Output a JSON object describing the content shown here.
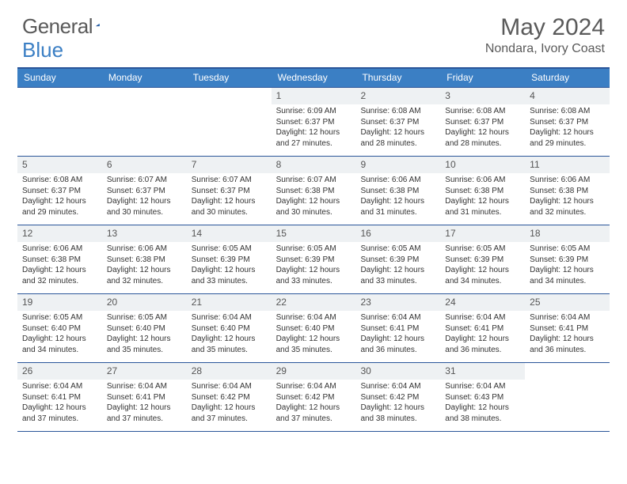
{
  "logo": {
    "part1": "General",
    "part2": "Blue"
  },
  "title": "May 2024",
  "location": "Nondara, Ivory Coast",
  "colors": {
    "header_bar": "#3b7fc4",
    "header_border": "#2a5599",
    "daynum_bg": "#eef1f3",
    "text": "#333333",
    "muted": "#5a5a5a",
    "white": "#ffffff"
  },
  "weekdays": [
    "Sunday",
    "Monday",
    "Tuesday",
    "Wednesday",
    "Thursday",
    "Friday",
    "Saturday"
  ],
  "weeks": [
    [
      null,
      null,
      null,
      {
        "n": "1",
        "sr": "6:09 AM",
        "ss": "6:37 PM",
        "dl": "12 hours and 27 minutes."
      },
      {
        "n": "2",
        "sr": "6:08 AM",
        "ss": "6:37 PM",
        "dl": "12 hours and 28 minutes."
      },
      {
        "n": "3",
        "sr": "6:08 AM",
        "ss": "6:37 PM",
        "dl": "12 hours and 28 minutes."
      },
      {
        "n": "4",
        "sr": "6:08 AM",
        "ss": "6:37 PM",
        "dl": "12 hours and 29 minutes."
      }
    ],
    [
      {
        "n": "5",
        "sr": "6:08 AM",
        "ss": "6:37 PM",
        "dl": "12 hours and 29 minutes."
      },
      {
        "n": "6",
        "sr": "6:07 AM",
        "ss": "6:37 PM",
        "dl": "12 hours and 30 minutes."
      },
      {
        "n": "7",
        "sr": "6:07 AM",
        "ss": "6:37 PM",
        "dl": "12 hours and 30 minutes."
      },
      {
        "n": "8",
        "sr": "6:07 AM",
        "ss": "6:38 PM",
        "dl": "12 hours and 30 minutes."
      },
      {
        "n": "9",
        "sr": "6:06 AM",
        "ss": "6:38 PM",
        "dl": "12 hours and 31 minutes."
      },
      {
        "n": "10",
        "sr": "6:06 AM",
        "ss": "6:38 PM",
        "dl": "12 hours and 31 minutes."
      },
      {
        "n": "11",
        "sr": "6:06 AM",
        "ss": "6:38 PM",
        "dl": "12 hours and 32 minutes."
      }
    ],
    [
      {
        "n": "12",
        "sr": "6:06 AM",
        "ss": "6:38 PM",
        "dl": "12 hours and 32 minutes."
      },
      {
        "n": "13",
        "sr": "6:06 AM",
        "ss": "6:38 PM",
        "dl": "12 hours and 32 minutes."
      },
      {
        "n": "14",
        "sr": "6:05 AM",
        "ss": "6:39 PM",
        "dl": "12 hours and 33 minutes."
      },
      {
        "n": "15",
        "sr": "6:05 AM",
        "ss": "6:39 PM",
        "dl": "12 hours and 33 minutes."
      },
      {
        "n": "16",
        "sr": "6:05 AM",
        "ss": "6:39 PM",
        "dl": "12 hours and 33 minutes."
      },
      {
        "n": "17",
        "sr": "6:05 AM",
        "ss": "6:39 PM",
        "dl": "12 hours and 34 minutes."
      },
      {
        "n": "18",
        "sr": "6:05 AM",
        "ss": "6:39 PM",
        "dl": "12 hours and 34 minutes."
      }
    ],
    [
      {
        "n": "19",
        "sr": "6:05 AM",
        "ss": "6:40 PM",
        "dl": "12 hours and 34 minutes."
      },
      {
        "n": "20",
        "sr": "6:05 AM",
        "ss": "6:40 PM",
        "dl": "12 hours and 35 minutes."
      },
      {
        "n": "21",
        "sr": "6:04 AM",
        "ss": "6:40 PM",
        "dl": "12 hours and 35 minutes."
      },
      {
        "n": "22",
        "sr": "6:04 AM",
        "ss": "6:40 PM",
        "dl": "12 hours and 35 minutes."
      },
      {
        "n": "23",
        "sr": "6:04 AM",
        "ss": "6:41 PM",
        "dl": "12 hours and 36 minutes."
      },
      {
        "n": "24",
        "sr": "6:04 AM",
        "ss": "6:41 PM",
        "dl": "12 hours and 36 minutes."
      },
      {
        "n": "25",
        "sr": "6:04 AM",
        "ss": "6:41 PM",
        "dl": "12 hours and 36 minutes."
      }
    ],
    [
      {
        "n": "26",
        "sr": "6:04 AM",
        "ss": "6:41 PM",
        "dl": "12 hours and 37 minutes."
      },
      {
        "n": "27",
        "sr": "6:04 AM",
        "ss": "6:41 PM",
        "dl": "12 hours and 37 minutes."
      },
      {
        "n": "28",
        "sr": "6:04 AM",
        "ss": "6:42 PM",
        "dl": "12 hours and 37 minutes."
      },
      {
        "n": "29",
        "sr": "6:04 AM",
        "ss": "6:42 PM",
        "dl": "12 hours and 37 minutes."
      },
      {
        "n": "30",
        "sr": "6:04 AM",
        "ss": "6:42 PM",
        "dl": "12 hours and 38 minutes."
      },
      {
        "n": "31",
        "sr": "6:04 AM",
        "ss": "6:43 PM",
        "dl": "12 hours and 38 minutes."
      },
      null
    ]
  ],
  "labels": {
    "sunrise": "Sunrise:",
    "sunset": "Sunset:",
    "daylight": "Daylight:"
  }
}
